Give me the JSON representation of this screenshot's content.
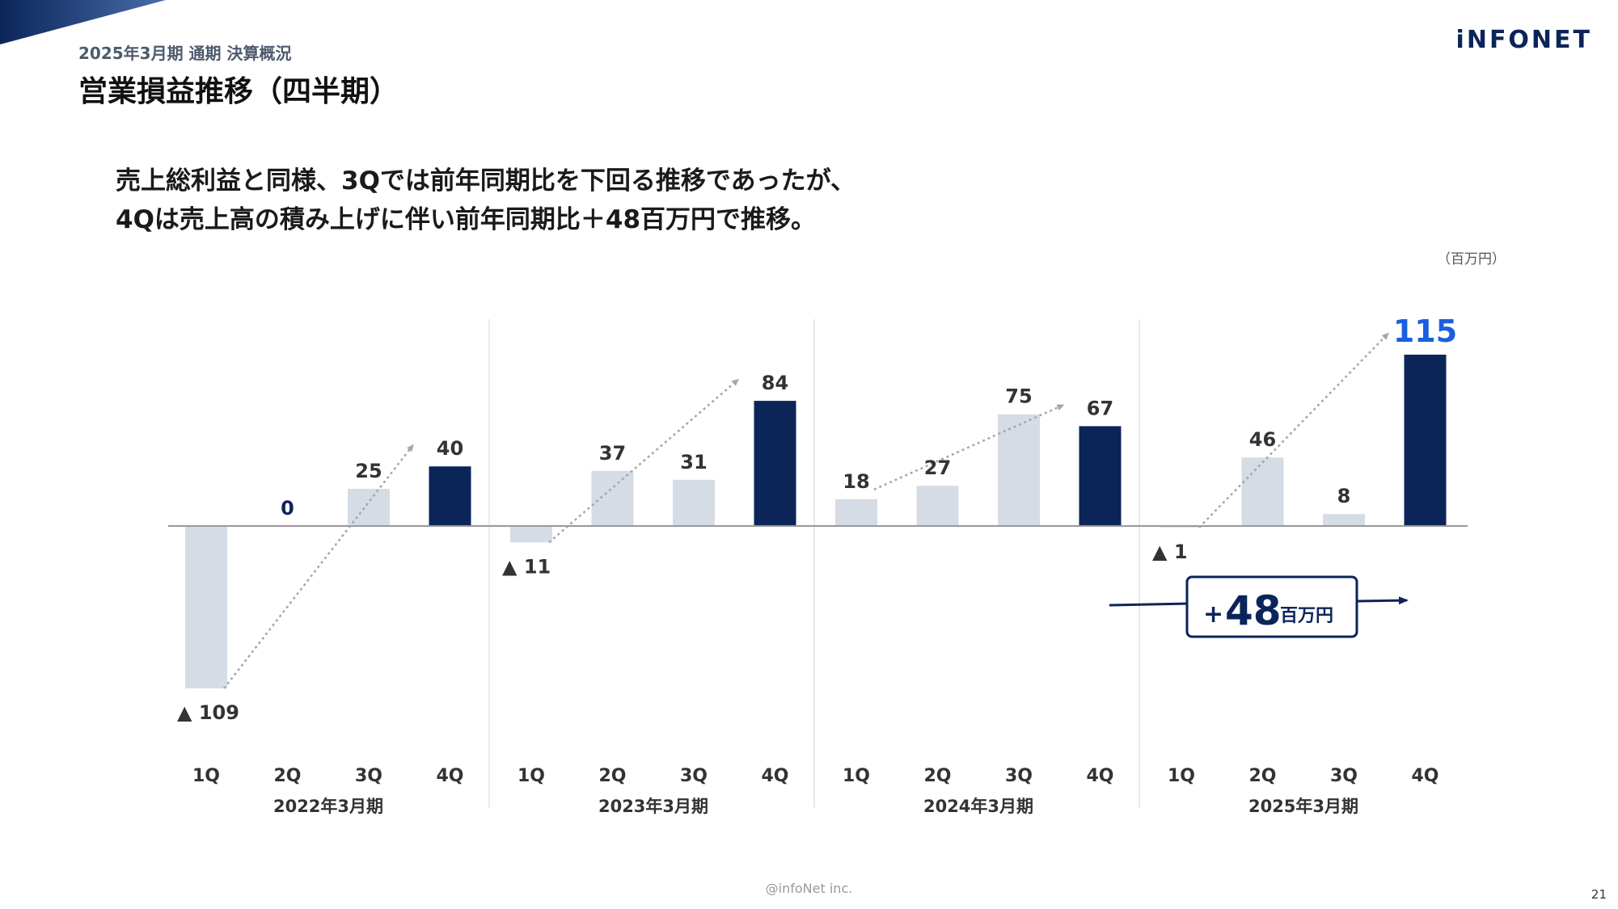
{
  "header": {
    "subtitle": "2025年3月期 通期 決算概況",
    "title": "営業損益推移（四半期）",
    "logo_text": "iNFONET"
  },
  "headline": {
    "line1": "売上総利益と同様、3Qでは前年同期比を下回る推移であったが、",
    "line2": "4Qは売上高の積み上げに伴い前年同期比＋48百万円で推移。"
  },
  "unit_label": "（百万円）",
  "callout": {
    "prefix": "+",
    "value": "48",
    "unit": "百万円"
  },
  "footer": {
    "copyright": "@infoNet inc.",
    "page_number": "21"
  },
  "colors": {
    "bar_light": "#d5dce6",
    "bar_dark": "#0b2559",
    "highlight_label": "#1a5fe0",
    "arrow_dotted": "#a6a6a6",
    "axis": "#999999",
    "divider": "#e3e3e3"
  },
  "chart_data": {
    "type": "bar",
    "title": "",
    "xlabel": "",
    "ylabel": "",
    "unit": "百万円",
    "grid": false,
    "legend": "none",
    "ylim": [
      -109,
      115
    ],
    "groups": [
      "2022年3月期",
      "2023年3月期",
      "2024年3月期",
      "2025年3月期"
    ],
    "categories": [
      "1Q",
      "2Q",
      "3Q",
      "4Q"
    ],
    "values": [
      [
        -109,
        0,
        25,
        40
      ],
      [
        -11,
        37,
        31,
        84
      ],
      [
        18,
        27,
        75,
        67
      ],
      [
        -1,
        46,
        8,
        115
      ]
    ],
    "value_labels": [
      [
        "▲ 109",
        "0",
        "25",
        "40"
      ],
      [
        "▲ 11",
        "37",
        "31",
        "84"
      ],
      [
        "18",
        "27",
        "75",
        "67"
      ],
      [
        "▲ 1",
        "46",
        "8",
        "115"
      ]
    ],
    "highlighted_quarter": "4Q",
    "trend_arrows": [
      {
        "group": 0,
        "from": "1Q",
        "to": "4Q"
      },
      {
        "group": 1,
        "from": "1Q",
        "to": "4Q"
      },
      {
        "group": 2,
        "from": "1Q",
        "to": "4Q"
      },
      {
        "group": 3,
        "from": "1Q",
        "to": "4Q"
      }
    ]
  }
}
